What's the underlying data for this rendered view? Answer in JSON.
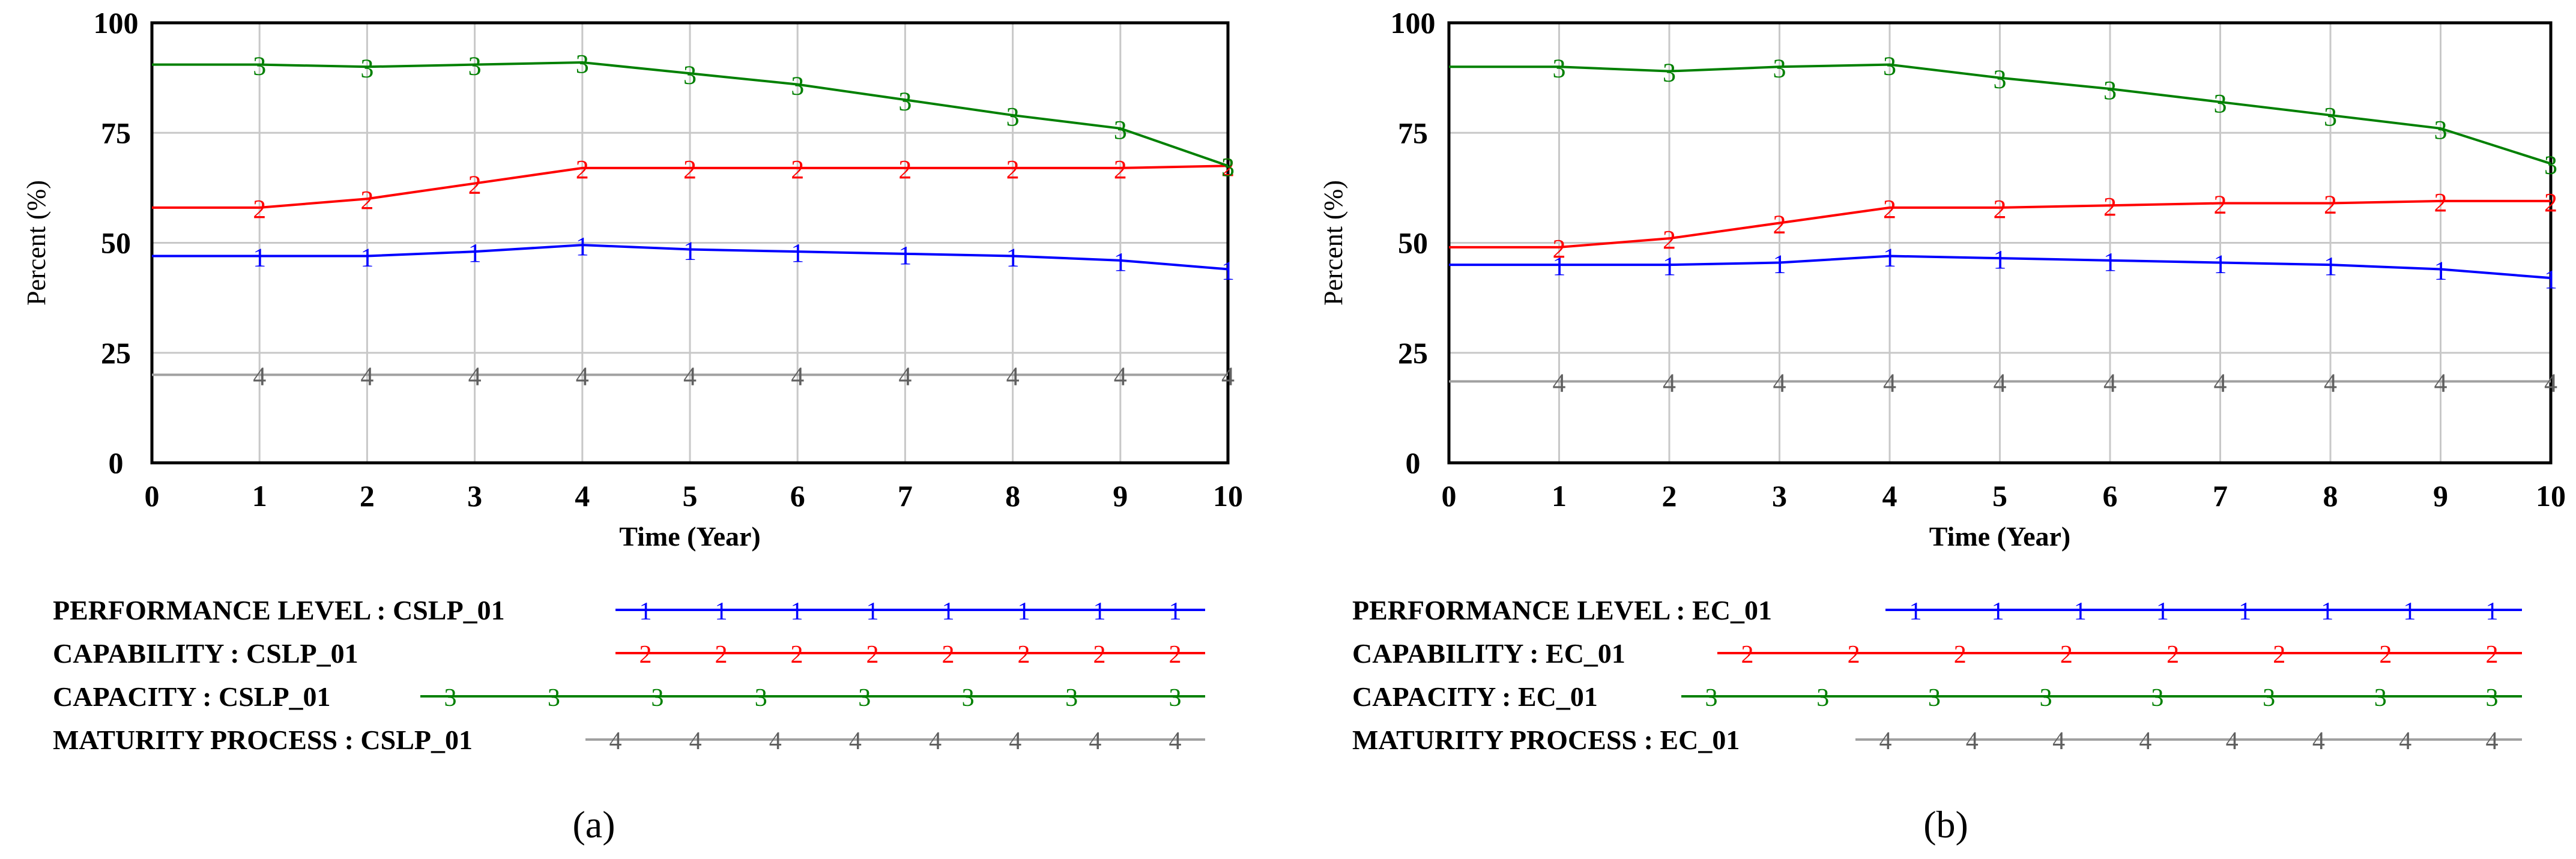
{
  "colors": {
    "series1": "#0000ff",
    "series2": "#ff0000",
    "series3": "#008000",
    "series4": "#a0a0a0",
    "grid": "#c8c8c8",
    "axis": "#000000",
    "background": "#ffffff"
  },
  "chart_data": [
    {
      "panel_label": "(a)",
      "type": "line",
      "xlabel": "Time (Year)",
      "ylabel": "Percent (%)",
      "xlim": [
        0,
        10
      ],
      "ylim": [
        0,
        100
      ],
      "x_ticks": [
        "0",
        "1",
        "2",
        "3",
        "4",
        "5",
        "6",
        "7",
        "8",
        "9",
        "10"
      ],
      "y_ticks": [
        "0",
        "25",
        "50",
        "75",
        "100"
      ],
      "grid": true,
      "x": [
        0,
        1,
        2,
        3,
        4,
        5,
        6,
        7,
        8,
        9,
        10
      ],
      "series": [
        {
          "name": "PERFORMANCE LEVEL : CSLP_01",
          "marker": "1",
          "values": [
            47,
            47,
            47,
            48,
            49.5,
            48.5,
            48,
            47.5,
            47,
            46,
            44
          ]
        },
        {
          "name": "CAPABILITY : CSLP_01",
          "marker": "2",
          "values": [
            58,
            58,
            60,
            63.5,
            67,
            67,
            67,
            67,
            67,
            67,
            67.5
          ]
        },
        {
          "name": "CAPACITY : CSLP_01",
          "marker": "3",
          "values": [
            90.5,
            90.5,
            90,
            90.5,
            91,
            88.5,
            86,
            82.5,
            79,
            76,
            67.5
          ]
        },
        {
          "name": "MATURITY PROCESS : CSLP_01",
          "marker": "4",
          "values": [
            20,
            20,
            20,
            20,
            20,
            20,
            20,
            20,
            20,
            20,
            20
          ]
        }
      ]
    },
    {
      "panel_label": "(b)",
      "type": "line",
      "xlabel": "Time (Year)",
      "ylabel": "Percent (%)",
      "xlim": [
        0,
        10
      ],
      "ylim": [
        0,
        100
      ],
      "x_ticks": [
        "0",
        "1",
        "2",
        "3",
        "4",
        "5",
        "6",
        "7",
        "8",
        "9",
        "10"
      ],
      "y_ticks": [
        "0",
        "25",
        "50",
        "75",
        "100"
      ],
      "grid": true,
      "x": [
        0,
        1,
        2,
        3,
        4,
        5,
        6,
        7,
        8,
        9,
        10
      ],
      "series": [
        {
          "name": "PERFORMANCE LEVEL : EC_01",
          "marker": "1",
          "values": [
            45,
            45,
            45,
            45.5,
            47,
            46.5,
            46,
            45.5,
            45,
            44,
            42
          ]
        },
        {
          "name": "CAPABILITY : EC_01",
          "marker": "2",
          "values": [
            49,
            49,
            51,
            54.5,
            58,
            58,
            58.5,
            59,
            59,
            59.5,
            59.5
          ]
        },
        {
          "name": "CAPACITY : EC_01",
          "marker": "3",
          "values": [
            90,
            90,
            89,
            90,
            90.5,
            87.5,
            85,
            82,
            79,
            76,
            68
          ]
        },
        {
          "name": "MATURITY PROCESS : EC_01",
          "marker": "4",
          "values": [
            18.5,
            18.5,
            18.5,
            18.5,
            18.5,
            18.5,
            18.5,
            18.5,
            18.5,
            18.5,
            18.5
          ]
        }
      ]
    }
  ]
}
